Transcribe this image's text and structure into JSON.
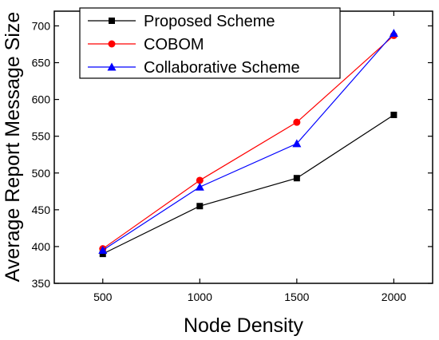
{
  "chart_data": {
    "type": "line",
    "title": "",
    "xlabel": "Node Density",
    "ylabel": "Average Report Message Size",
    "x": [
      500,
      1000,
      1500,
      2000
    ],
    "xticks": [
      500,
      1000,
      1500,
      2000
    ],
    "yticks": [
      350,
      400,
      450,
      500,
      550,
      600,
      650,
      700
    ],
    "xlim": [
      250,
      2200
    ],
    "ylim": [
      350,
      720
    ],
    "grid": false,
    "legend_position": "top-left",
    "series": [
      {
        "name": "Proposed Scheme",
        "color": "#000000",
        "marker": "square",
        "values": [
          390,
          455,
          493,
          579
        ]
      },
      {
        "name": "COBOM",
        "color": "#ff0000",
        "marker": "circle",
        "values": [
          397,
          490,
          569,
          687
        ]
      },
      {
        "name": "Collaborative Scheme",
        "color": "#0000ff",
        "marker": "triangle",
        "values": [
          395,
          481,
          540,
          690
        ]
      }
    ]
  }
}
